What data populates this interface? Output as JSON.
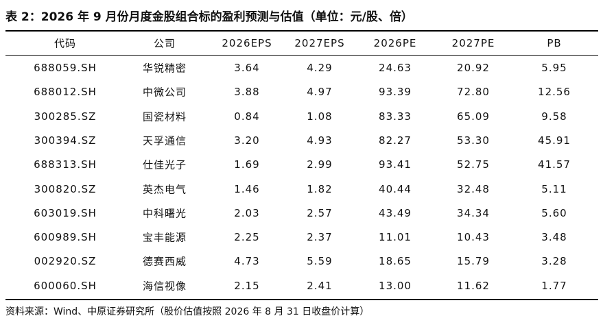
{
  "header": {
    "title": "表 2：2026 年 9 月份月度金股组合标的盈利预测与估值（单位：元/股、倍）"
  },
  "table": {
    "columns": [
      "代码",
      "公司",
      "2026EPS",
      "2027EPS",
      "2026PE",
      "2027PE",
      "PB"
    ],
    "rows": [
      [
        "688059.SH",
        "华锐精密",
        "3.64",
        "4.29",
        "24.63",
        "20.92",
        "5.95"
      ],
      [
        "688012.SH",
        "中微公司",
        "3.88",
        "4.97",
        "93.39",
        "72.80",
        "12.56"
      ],
      [
        "300285.SZ",
        "国瓷材料",
        "0.84",
        "1.08",
        "83.33",
        "65.09",
        "9.58"
      ],
      [
        "300394.SZ",
        "天孚通信",
        "3.20",
        "4.93",
        "82.27",
        "53.30",
        "45.91"
      ],
      [
        "688313.SH",
        "仕佳光子",
        "1.69",
        "2.99",
        "93.41",
        "52.75",
        "41.57"
      ],
      [
        "300820.SZ",
        "英杰电气",
        "1.46",
        "1.82",
        "40.44",
        "32.48",
        "5.11"
      ],
      [
        "603019.SH",
        "中科曙光",
        "2.03",
        "2.57",
        "43.49",
        "34.34",
        "5.60"
      ],
      [
        "600989.SH",
        "宝丰能源",
        "2.25",
        "2.37",
        "11.01",
        "10.43",
        "3.48"
      ],
      [
        "002920.SZ",
        "德赛西威",
        "4.73",
        "5.59",
        "18.65",
        "15.79",
        "3.28"
      ],
      [
        "600060.SH",
        "海信视像",
        "2.15",
        "2.41",
        "13.00",
        "11.62",
        "1.77"
      ]
    ]
  },
  "footer": {
    "source": "资料来源：Wind、中原证券研究所（股价估值按照 2026 年 8 月 31 日收盘价计算）"
  }
}
